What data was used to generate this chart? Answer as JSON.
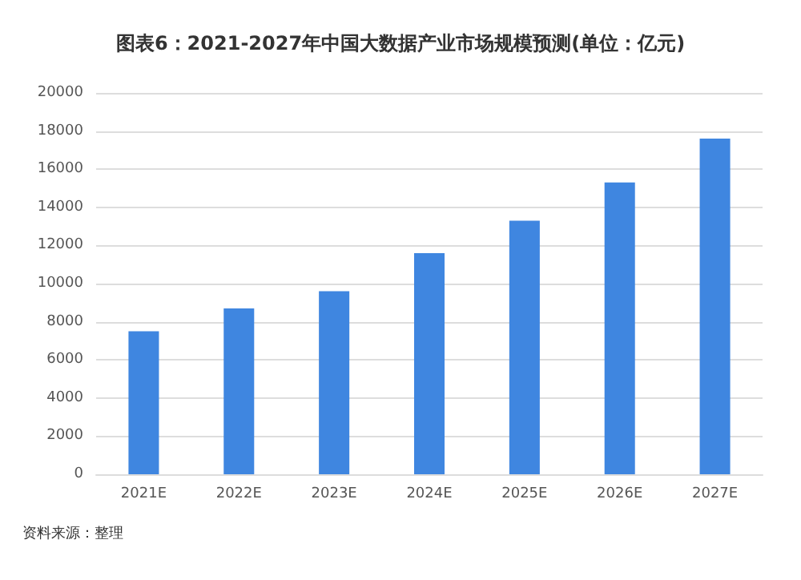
{
  "chart_data": {
    "type": "bar",
    "title": "图表6：2021-2027年中国大数据产业市场规模预测(单位：亿元)",
    "categories": [
      "2021E",
      "2022E",
      "2023E",
      "2024E",
      "2025E",
      "2026E",
      "2027E"
    ],
    "values": [
      7500,
      8700,
      9600,
      11600,
      13300,
      15300,
      17600
    ],
    "color": "#3f86e0",
    "ylim": [
      0,
      20000
    ],
    "yticks": [
      0,
      2000,
      4000,
      6000,
      8000,
      10000,
      12000,
      14000,
      16000,
      18000,
      20000
    ],
    "grid": "y",
    "annotations": [
      "资料来源：整理"
    ]
  }
}
